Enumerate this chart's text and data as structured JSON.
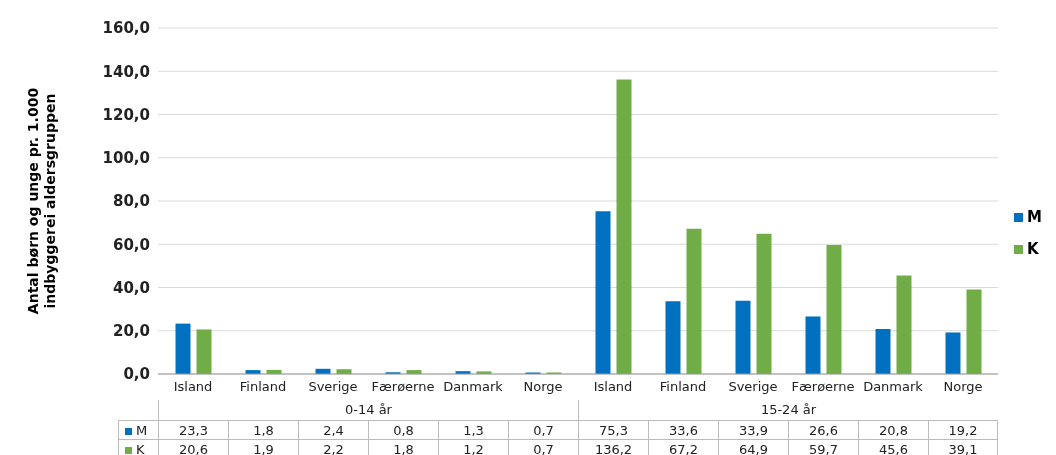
{
  "chart_data": {
    "type": "bar",
    "ylabel": "Antal børn og unge pr. 1.000 indbyggerei aldersgruppen",
    "categories": [
      "Island",
      "Finland",
      "Sverige",
      "Færøerne",
      "Danmark",
      "Norge",
      "Island",
      "Finland",
      "Sverige",
      "Færøerne",
      "Danmark",
      "Norge"
    ],
    "annotations": [
      "0-14 år",
      "15-24 år"
    ],
    "series": [
      {
        "name": "M",
        "color": "#0070c0",
        "values": [
          23.3,
          1.8,
          2.4,
          0.8,
          1.3,
          0.7,
          75.3,
          33.6,
          33.9,
          26.6,
          20.8,
          19.2
        ],
        "value_labels": [
          "23,3",
          "1,8",
          "2,4",
          "0,8",
          "1,3",
          "0,7",
          "75,3",
          "33,6",
          "33,9",
          "26,6",
          "20,8",
          "19,2"
        ]
      },
      {
        "name": "K",
        "color": "#70ad47",
        "values": [
          20.6,
          1.9,
          2.2,
          1.8,
          1.2,
          0.7,
          136.2,
          67.2,
          64.9,
          59.7,
          45.6,
          39.1
        ],
        "value_labels": [
          "20,6",
          "1,9",
          "2,2",
          "1,8",
          "1,2",
          "0,7",
          "136,2",
          "67,2",
          "64,9",
          "59,7",
          "45,6",
          "39,1"
        ]
      }
    ],
    "ylim": [
      0,
      160
    ],
    "yticks": [
      {
        "value": 0,
        "label": "0,0"
      },
      {
        "value": 20,
        "label": "20,0"
      },
      {
        "value": 40,
        "label": "40,0"
      },
      {
        "value": 60,
        "label": "60,0"
      },
      {
        "value": 80,
        "label": "80,0"
      },
      {
        "value": 100,
        "label": "100,0"
      },
      {
        "value": 120,
        "label": "120,0"
      },
      {
        "value": 140,
        "label": "140,0"
      },
      {
        "value": 160,
        "label": "160,0"
      }
    ],
    "grid": "y",
    "legend": "right"
  }
}
